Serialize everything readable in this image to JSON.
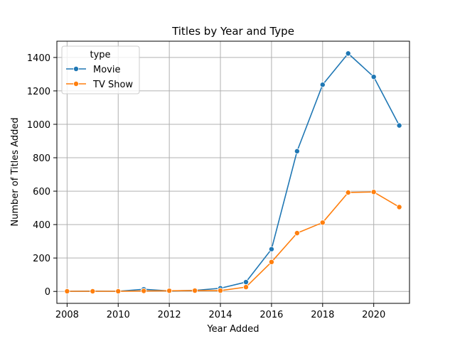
{
  "chart_data": {
    "type": "line",
    "title": "Titles by Year and Type",
    "xlabel": "Year Added",
    "ylabel": "Number of Titles Added",
    "xlim": [
      2007.6,
      2021.4
    ],
    "ylim": [
      -71.3,
      1497.3
    ],
    "xticks": [
      2008,
      2010,
      2012,
      2014,
      2016,
      2018,
      2020
    ],
    "yticks": [
      0,
      200,
      400,
      600,
      800,
      1000,
      1200,
      1400
    ],
    "grid": true,
    "legend": {
      "title": "type",
      "placement": "top-left"
    },
    "series": [
      {
        "name": "Movie",
        "color": "#1f77b4",
        "x": [
          2008,
          2009,
          2010,
          2011,
          2012,
          2013,
          2014,
          2015,
          2016,
          2017,
          2018,
          2019,
          2020,
          2021
        ],
        "values": [
          1,
          2,
          1,
          13,
          3,
          6,
          19,
          56,
          253,
          839,
          1237,
          1424,
          1284,
          993
        ]
      },
      {
        "name": "TV Show",
        "color": "#ff7f0e",
        "x": [
          2008,
          2009,
          2010,
          2011,
          2012,
          2013,
          2014,
          2015,
          2016,
          2017,
          2018,
          2019,
          2020,
          2021
        ],
        "values": [
          1,
          1,
          1,
          3,
          4,
          5,
          5,
          26,
          176,
          349,
          412,
          592,
          595,
          505
        ]
      }
    ]
  }
}
